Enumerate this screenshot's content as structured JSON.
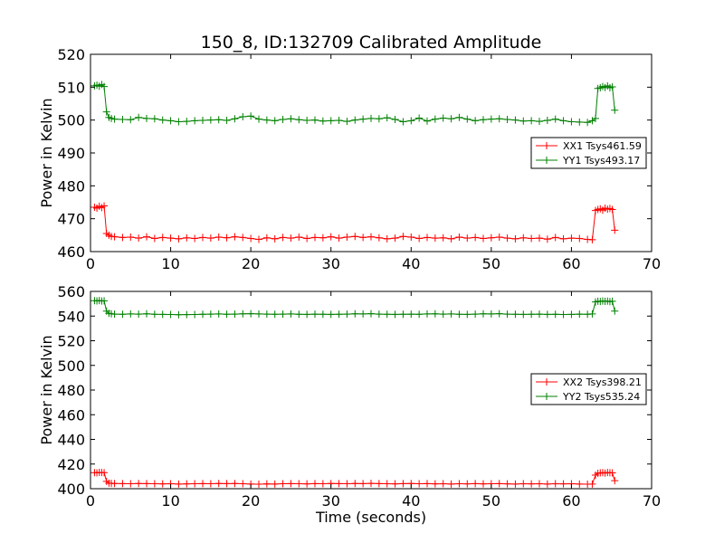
{
  "figure": {
    "title": "150_8, ID:132709 Calibrated Amplitude"
  },
  "chart_data": [
    {
      "type": "line",
      "xlabel": "",
      "ylabel": "Power in Kelvin",
      "xlim": [
        0,
        70
      ],
      "ylim": [
        460,
        520
      ],
      "xticks": [
        "0",
        "10",
        "20",
        "30",
        "40",
        "50",
        "60",
        "70"
      ],
      "yticks": [
        "460",
        "470",
        "480",
        "490",
        "500",
        "510",
        "520"
      ],
      "grid": false,
      "legend_position": "center-right",
      "series": [
        {
          "name": "XX1 Tsys461.59",
          "color": "#ff0000",
          "marker": "plus",
          "x": [
            0.5,
            0.8,
            1.1,
            1.4,
            1.7,
            2.0,
            2.3,
            2.6,
            3,
            4,
            5,
            6,
            7,
            8,
            9,
            10,
            11,
            12,
            13,
            14,
            15,
            16,
            17,
            18,
            19,
            20,
            21,
            22,
            23,
            24,
            25,
            26,
            27,
            28,
            29,
            30,
            31,
            32,
            33,
            34,
            35,
            36,
            37,
            38,
            39,
            40,
            41,
            42,
            43,
            44,
            45,
            46,
            47,
            48,
            49,
            50,
            51,
            52,
            53,
            54,
            55,
            56,
            57,
            58,
            59,
            60,
            61,
            62,
            62.6,
            63.0,
            63.3,
            63.6,
            63.9,
            64.2,
            64.5,
            64.8,
            65.1,
            65.4
          ],
          "y": [
            473.5,
            473.2,
            473.8,
            473.4,
            473.9,
            465.5,
            465.0,
            464.6,
            464.5,
            464.3,
            464.4,
            464.1,
            464.5,
            464.0,
            464.3,
            464.1,
            463.9,
            464.2,
            464.0,
            464.3,
            464.1,
            464.4,
            464.2,
            464.5,
            464.3,
            464.0,
            463.7,
            464.2,
            463.9,
            464.3,
            464.1,
            464.4,
            464.0,
            464.3,
            464.2,
            464.5,
            464.1,
            464.4,
            464.6,
            464.3,
            464.5,
            464.2,
            463.9,
            464.1,
            464.6,
            464.4,
            464.0,
            464.3,
            464.1,
            464.2,
            463.9,
            464.4,
            464.1,
            464.3,
            464.0,
            464.2,
            464.4,
            464.1,
            463.9,
            464.2,
            464.0,
            464.1,
            463.8,
            464.3,
            463.9,
            464.1,
            464.0,
            463.7,
            463.6,
            472.5,
            472.8,
            473.0,
            472.6,
            473.2,
            472.9,
            473.1,
            472.8,
            466.5
          ]
        },
        {
          "name": "YY1 Tsys493.17",
          "color": "#008000",
          "marker": "plus",
          "x": [
            0.5,
            0.8,
            1.1,
            1.4,
            1.7,
            2.0,
            2.3,
            2.6,
            3,
            4,
            5,
            6,
            7,
            8,
            9,
            10,
            11,
            12,
            13,
            14,
            15,
            16,
            17,
            18,
            19,
            20,
            21,
            22,
            23,
            24,
            25,
            26,
            27,
            28,
            29,
            30,
            31,
            32,
            33,
            34,
            35,
            36,
            37,
            38,
            39,
            40,
            41,
            42,
            43,
            44,
            45,
            46,
            47,
            48,
            49,
            50,
            51,
            52,
            53,
            54,
            55,
            56,
            57,
            58,
            59,
            60,
            61,
            62,
            62.6,
            63.0,
            63.3,
            63.6,
            63.9,
            64.2,
            64.5,
            64.8,
            65.1,
            65.4
          ],
          "y": [
            510.4,
            510.6,
            510.3,
            510.8,
            510.2,
            502.5,
            500.8,
            500.5,
            500.3,
            500.2,
            500.1,
            500.8,
            500.5,
            500.4,
            500.0,
            499.8,
            499.5,
            499.6,
            499.8,
            499.9,
            500.0,
            500.1,
            499.9,
            500.4,
            501.0,
            501.2,
            500.3,
            500.0,
            499.8,
            500.2,
            500.4,
            500.1,
            499.9,
            500.0,
            499.7,
            499.8,
            499.9,
            499.6,
            500.0,
            500.3,
            500.5,
            500.4,
            500.7,
            500.2,
            499.5,
            499.8,
            500.6,
            499.7,
            500.3,
            500.6,
            500.4,
            500.8,
            500.3,
            499.8,
            500.1,
            500.3,
            500.4,
            500.2,
            500.0,
            499.7,
            499.8,
            499.6,
            499.9,
            500.3,
            499.8,
            499.5,
            499.4,
            499.3,
            499.8,
            500.5,
            509.6,
            509.8,
            510.2,
            509.9,
            510.4,
            509.8,
            510.1,
            503.0
          ]
        }
      ]
    },
    {
      "type": "line",
      "xlabel": "Time (seconds)",
      "ylabel": "Power in Kelvin",
      "xlim": [
        0,
        70
      ],
      "ylim": [
        400,
        560
      ],
      "xticks": [
        "0",
        "10",
        "20",
        "30",
        "40",
        "50",
        "60",
        "70"
      ],
      "yticks": [
        "400",
        "420",
        "440",
        "460",
        "480",
        "500",
        "520",
        "540",
        "560"
      ],
      "grid": false,
      "legend_position": "center-right",
      "series": [
        {
          "name": "XX2 Tsys398.21",
          "color": "#ff0000",
          "marker": "plus",
          "x": [
            0.5,
            0.8,
            1.1,
            1.4,
            1.7,
            2.0,
            2.3,
            2.6,
            3,
            4,
            5,
            6,
            7,
            8,
            9,
            10,
            11,
            12,
            13,
            14,
            15,
            16,
            17,
            18,
            19,
            20,
            21,
            22,
            23,
            24,
            25,
            26,
            27,
            28,
            29,
            30,
            31,
            32,
            33,
            34,
            35,
            36,
            37,
            38,
            39,
            40,
            41,
            42,
            43,
            44,
            45,
            46,
            47,
            48,
            49,
            50,
            51,
            52,
            53,
            54,
            55,
            56,
            57,
            58,
            59,
            60,
            61,
            62,
            62.6,
            63.0,
            63.3,
            63.6,
            63.9,
            64.2,
            64.5,
            64.8,
            65.1,
            65.4
          ],
          "y": [
            413.0,
            412.8,
            413.2,
            413.1,
            413.0,
            406.0,
            404.5,
            404.3,
            404.2,
            404.1,
            404.0,
            404.2,
            404.1,
            404.0,
            403.9,
            404.0,
            403.8,
            403.9,
            404.0,
            404.1,
            404.0,
            404.2,
            404.1,
            404.2,
            404.0,
            403.8,
            403.7,
            403.9,
            403.8,
            404.0,
            404.1,
            404.0,
            403.9,
            404.1,
            404.0,
            404.2,
            404.1,
            404.0,
            404.2,
            404.1,
            404.3,
            404.1,
            404.0,
            403.9,
            404.1,
            404.2,
            404.0,
            404.1,
            403.9,
            404.0,
            403.8,
            404.0,
            403.9,
            404.1,
            403.9,
            404.0,
            404.1,
            403.9,
            403.8,
            404.0,
            403.9,
            404.0,
            403.8,
            404.0,
            403.9,
            404.0,
            403.8,
            403.7,
            403.8,
            411.0,
            412.5,
            412.8,
            413.0,
            412.7,
            413.1,
            412.9,
            412.8,
            406.5
          ]
        },
        {
          "name": "YY2 Tsys535.24",
          "color": "#008000",
          "marker": "plus",
          "x": [
            0.5,
            0.8,
            1.1,
            1.4,
            1.7,
            2.0,
            2.3,
            2.6,
            3,
            4,
            5,
            6,
            7,
            8,
            9,
            10,
            11,
            12,
            13,
            14,
            15,
            16,
            17,
            18,
            19,
            20,
            21,
            22,
            23,
            24,
            25,
            26,
            27,
            28,
            29,
            30,
            31,
            32,
            33,
            34,
            35,
            36,
            37,
            38,
            39,
            40,
            41,
            42,
            43,
            44,
            45,
            46,
            47,
            48,
            49,
            50,
            51,
            52,
            53,
            54,
            55,
            56,
            57,
            58,
            59,
            60,
            61,
            62,
            62.6,
            63.0,
            63.3,
            63.6,
            63.9,
            64.2,
            64.5,
            64.8,
            65.1,
            65.4
          ],
          "y": [
            552.5,
            552.3,
            552.6,
            552.2,
            552.4,
            544.0,
            542.2,
            541.8,
            541.6,
            541.5,
            541.7,
            541.6,
            541.8,
            541.5,
            541.4,
            541.3,
            541.1,
            541.2,
            541.3,
            541.5,
            541.6,
            541.7,
            541.5,
            541.6,
            541.8,
            541.9,
            541.7,
            541.6,
            541.5,
            541.6,
            541.7,
            541.5,
            541.4,
            541.6,
            541.5,
            541.4,
            541.5,
            541.6,
            541.8,
            541.7,
            541.9,
            541.6,
            541.5,
            541.4,
            541.5,
            541.6,
            541.5,
            541.7,
            541.8,
            541.6,
            541.7,
            541.5,
            541.4,
            541.6,
            541.8,
            541.7,
            541.9,
            541.6,
            541.5,
            541.4,
            541.5,
            541.6,
            541.4,
            541.5,
            541.3,
            541.4,
            541.6,
            541.5,
            541.7,
            551.5,
            552.0,
            551.8,
            552.2,
            551.9,
            552.1,
            551.7,
            552.0,
            544.0
          ]
        }
      ]
    }
  ]
}
